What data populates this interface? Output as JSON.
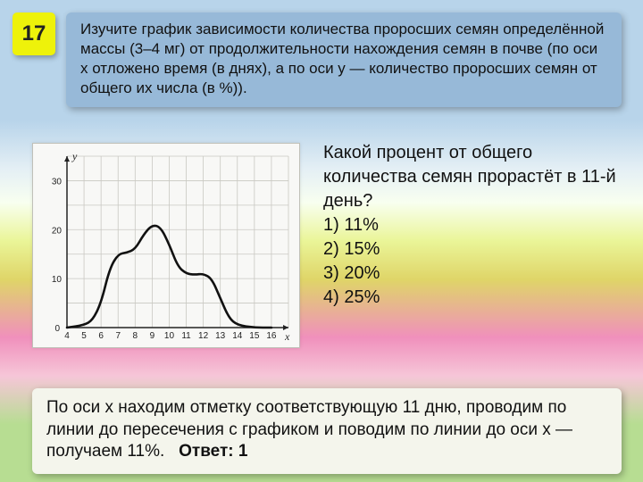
{
  "badge": {
    "number": "17"
  },
  "prompt": {
    "text": "Изучите график зависимости количества проросших семян определённой массы (3–4 мг) от продолжительности нахождения семян в почве (по оси х отложено время (в днях), а по оси у — количество проросших семян от общего их числа (в %))."
  },
  "chart": {
    "type": "line",
    "background_color": "#f8f8f6",
    "grid_color": "#c9c8c2",
    "axis_color": "#222222",
    "curve_color": "#111111",
    "curve_width": 2.6,
    "y_label": "y",
    "x_label": "x",
    "label_fontsize": 12,
    "tick_fontsize": 10,
    "xlim": [
      4,
      17
    ],
    "ylim": [
      0,
      35
    ],
    "x_ticks": [
      4,
      5,
      6,
      7,
      8,
      9,
      10,
      11,
      12,
      13,
      14,
      15,
      16
    ],
    "y_ticks": [
      0,
      10,
      20,
      30
    ],
    "grid_x_step": 1,
    "grid_y_step": 5,
    "series": [
      {
        "x": 4,
        "y": 0
      },
      {
        "x": 5,
        "y": 0.5
      },
      {
        "x": 5.5,
        "y": 1.5
      },
      {
        "x": 6,
        "y": 5
      },
      {
        "x": 6.5,
        "y": 12
      },
      {
        "x": 7,
        "y": 15
      },
      {
        "x": 7.5,
        "y": 15.3
      },
      {
        "x": 8,
        "y": 16
      },
      {
        "x": 8.5,
        "y": 19
      },
      {
        "x": 9,
        "y": 21
      },
      {
        "x": 9.5,
        "y": 20.5
      },
      {
        "x": 10,
        "y": 17
      },
      {
        "x": 10.5,
        "y": 12.5
      },
      {
        "x": 11,
        "y": 11
      },
      {
        "x": 11.5,
        "y": 10.8
      },
      {
        "x": 12,
        "y": 11
      },
      {
        "x": 12.5,
        "y": 10
      },
      {
        "x": 13,
        "y": 6
      },
      {
        "x": 13.5,
        "y": 2
      },
      {
        "x": 14,
        "y": 0.5
      },
      {
        "x": 15,
        "y": 0
      },
      {
        "x": 16,
        "y": 0
      }
    ]
  },
  "question": {
    "stem": "Какой процент от общего количества семян прорастёт в 11-й день?",
    "options": [
      "1) 11%",
      "2) 15%",
      "3) 20%",
      "4) 25%"
    ]
  },
  "answer": {
    "text": "По оси x находим отметку соответствующую 11 дню, проводим по линии до пересечения с графиком и поводим по линии до оси x — получаем 11%.",
    "label": "Ответ: 1"
  },
  "colors": {
    "badge_bg": "#eef20a",
    "prompt_bg": "#97b9d8",
    "answer_bg": "#f4f5ec"
  }
}
